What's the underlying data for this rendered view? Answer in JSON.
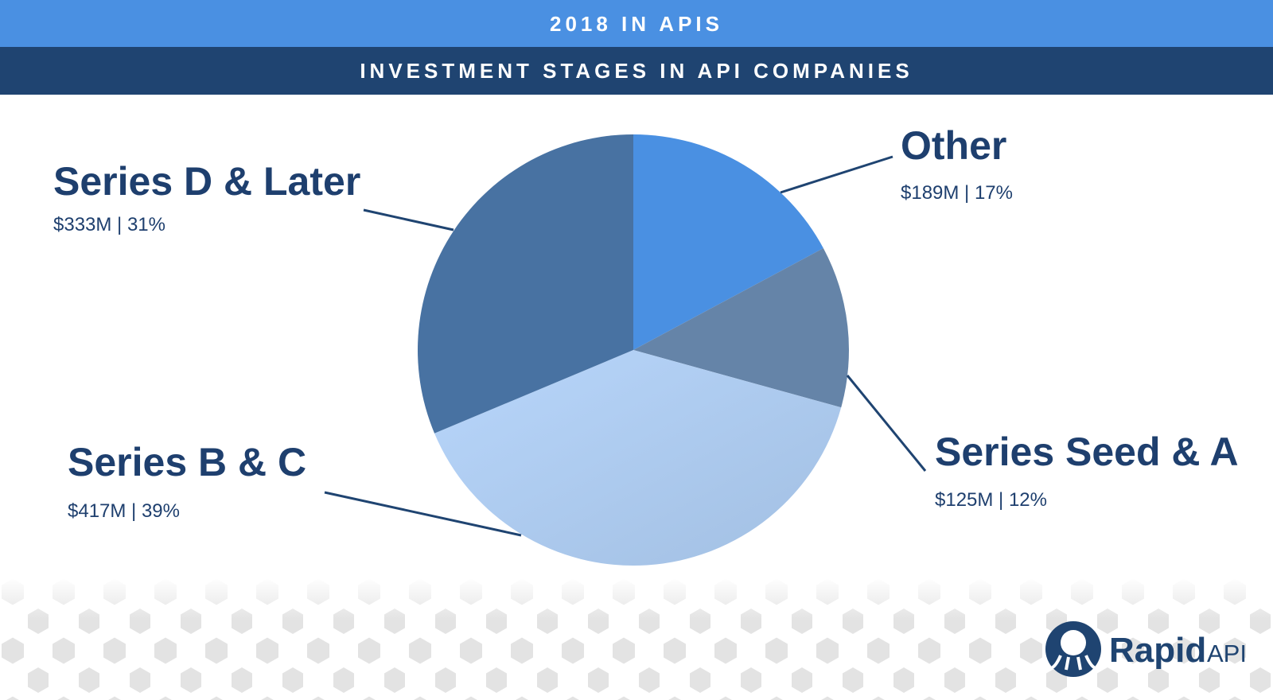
{
  "chart_data": {
    "type": "pie",
    "title": "2018 IN APIS",
    "subtitle": "INVESTMENT STAGES IN API COMPANIES",
    "categories": [
      "Other",
      "Series Seed & A",
      "Series B & C",
      "Series D & Later"
    ],
    "values": [
      17,
      12,
      39,
      31
    ],
    "value_labels": [
      "$189M | 17%",
      "$125M | 12%",
      "$417M | 39%",
      "$333M | 31%"
    ],
    "colors": [
      "#4a90e2",
      "#6584a8",
      "#a9c8ee",
      "#4872a2"
    ]
  },
  "brand": {
    "name": "Rapid",
    "suffix": "API"
  }
}
